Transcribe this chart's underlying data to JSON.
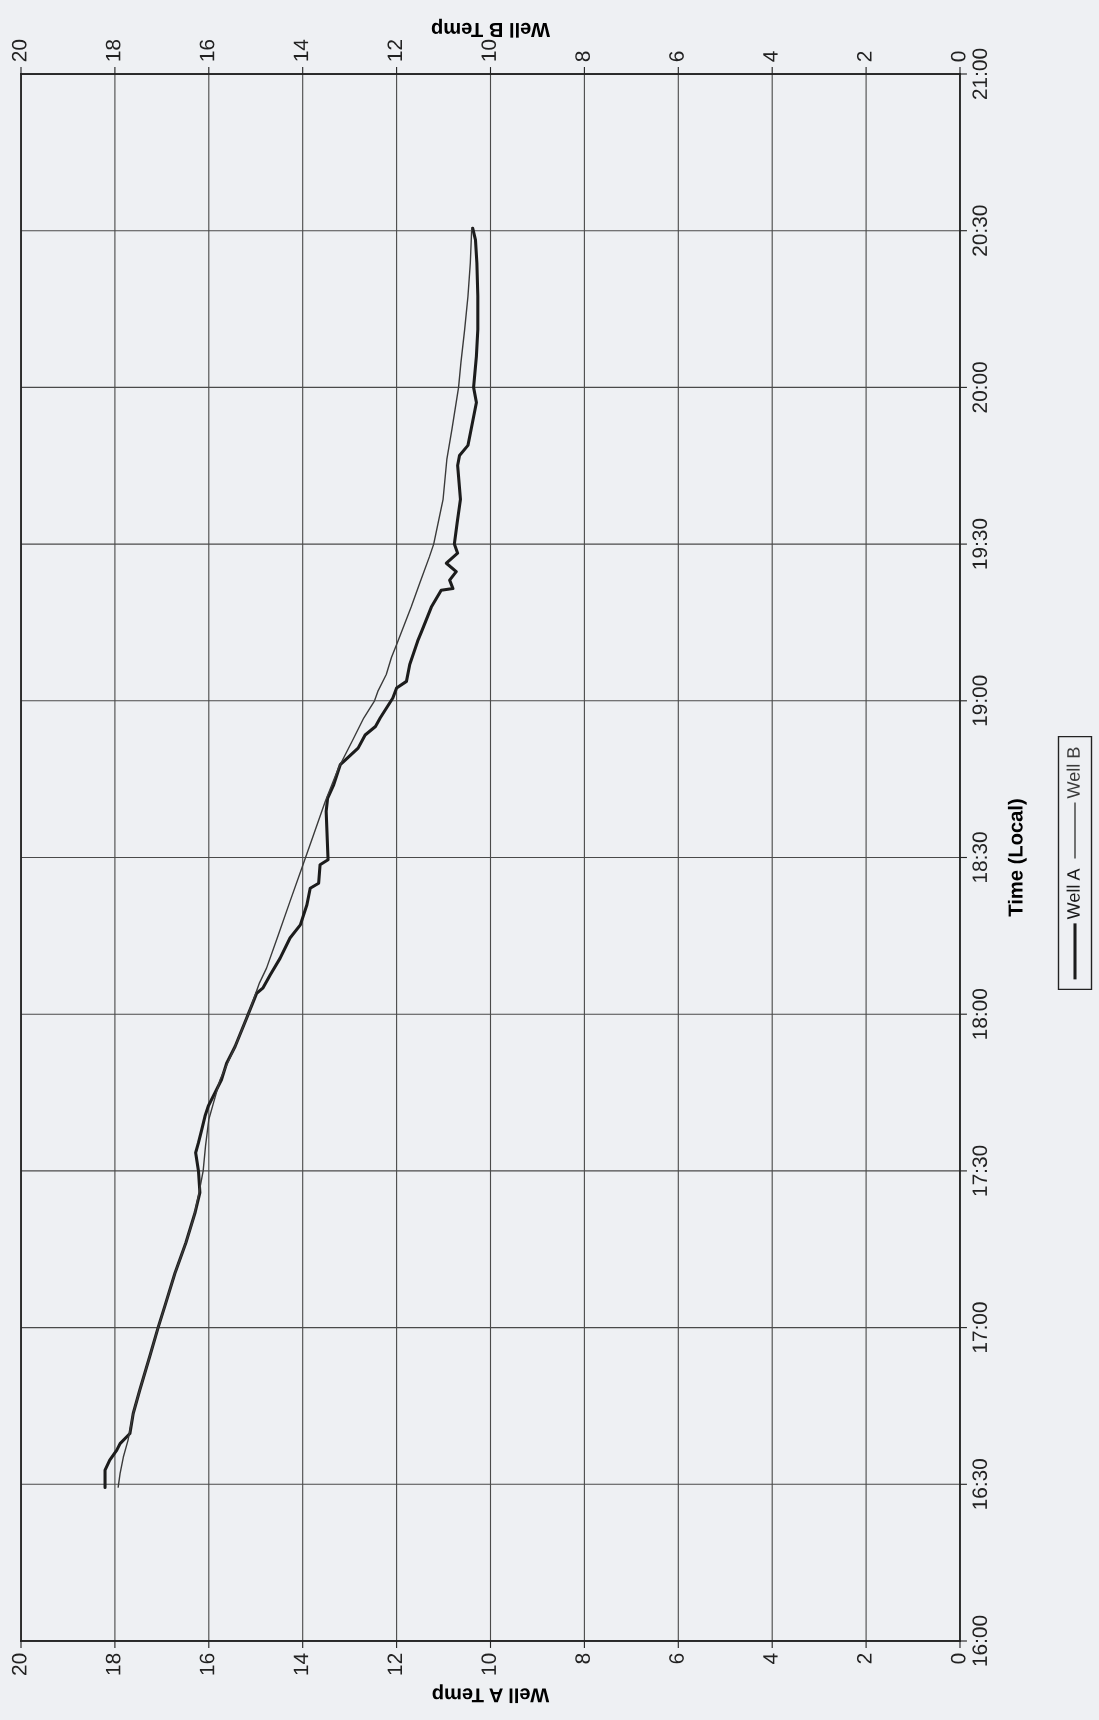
{
  "chart_data": {
    "type": "line",
    "xlabel": "Well A Temp",
    "x2label": "Well B Temp",
    "ylabel": "Time (Local)",
    "xlim": [
      20,
      0
    ],
    "xticks": [
      20,
      18,
      16,
      14,
      12,
      10,
      8,
      6,
      4,
      2,
      0
    ],
    "x2lim": [
      20,
      0
    ],
    "x2ticks": [
      20,
      18,
      16,
      14,
      12,
      10,
      8,
      6,
      4,
      2,
      0
    ],
    "ylim": [
      16,
      21
    ],
    "yticks": [
      {
        "value": 16,
        "label": "16:00"
      },
      {
        "value": 16.5,
        "label": "16:30"
      },
      {
        "value": 17,
        "label": "17:00"
      },
      {
        "value": 17.5,
        "label": "17:30"
      },
      {
        "value": 18,
        "label": "18:00"
      },
      {
        "value": 18.5,
        "label": "18:30"
      },
      {
        "value": 19,
        "label": "19:00"
      },
      {
        "value": 19.5,
        "label": "19:30"
      },
      {
        "value": 20,
        "label": "20:00"
      },
      {
        "value": 20.5,
        "label": "20:30"
      },
      {
        "value": 21,
        "label": "21:00"
      }
    ],
    "grid": true,
    "legend": "right",
    "series": [
      {
        "name": "Well A",
        "color": "#1c1c1c",
        "x": [
          18.21,
          18.21,
          18.11,
          17.96,
          17.89,
          17.68,
          17.61,
          17.47,
          17.26,
          17.08,
          16.94,
          16.72,
          16.49,
          16.29,
          16.19,
          16.22,
          16.28,
          16.22,
          16.15,
          16.08,
          16.01,
          15.87,
          15.73,
          15.62,
          15.44,
          15.16,
          14.98,
          14.85,
          14.69,
          14.48,
          14.27,
          14.05,
          13.91,
          13.84,
          13.66,
          13.63,
          13.46,
          13.5,
          13.47,
          13.34,
          13.2,
          12.82,
          12.67,
          12.45,
          12.35,
          12.08,
          12.0,
          11.79,
          11.72,
          11.55,
          11.46,
          11.26,
          11.05,
          10.8,
          10.87,
          10.73,
          10.94,
          10.7,
          10.77,
          10.71,
          10.64,
          10.7,
          10.66,
          10.48,
          10.41,
          10.3,
          10.36,
          10.3,
          10.27,
          10.27,
          10.29,
          10.32,
          10.38
        ],
        "values": [
          16.49,
          16.545,
          16.577,
          16.609,
          16.63,
          16.662,
          16.726,
          16.801,
          16.907,
          17.0,
          17.067,
          17.174,
          17.27,
          17.368,
          17.431,
          17.5,
          17.558,
          17.59,
          17.632,
          17.675,
          17.707,
          17.749,
          17.791,
          17.844,
          17.897,
          18.0,
          18.067,
          18.083,
          18.126,
          18.179,
          18.243,
          18.285,
          18.349,
          18.402,
          18.418,
          18.477,
          18.493,
          18.647,
          18.689,
          18.732,
          18.796,
          18.849,
          18.891,
          18.918,
          18.945,
          19.009,
          19.041,
          19.062,
          19.116,
          19.191,
          19.224,
          19.299,
          19.353,
          19.358,
          19.385,
          19.412,
          19.439,
          19.471,
          19.5,
          19.568,
          19.643,
          19.751,
          19.783,
          19.815,
          19.868,
          19.952,
          20.0,
          20.1,
          20.185,
          20.291,
          20.397,
          20.471,
          20.508
        ]
      },
      {
        "name": "Well B",
        "color": "#3a3a3a",
        "axis": "x2",
        "x": [
          17.93,
          17.89,
          17.82,
          17.72,
          17.61,
          17.47,
          17.26,
          17.08,
          16.94,
          16.72,
          16.49,
          16.33,
          16.22,
          16.12,
          16.07,
          16.0,
          15.9,
          15.76,
          15.44,
          15.16,
          14.92,
          14.77,
          14.52,
          14.27,
          14.02,
          13.77,
          13.52,
          13.24,
          12.95,
          12.7,
          12.47,
          12.4,
          12.22,
          12.11,
          11.97,
          11.83,
          11.69,
          11.51,
          11.3,
          11.21,
          11.01,
          10.93,
          10.82,
          10.68,
          10.63,
          10.55,
          10.48,
          10.43,
          10.4
        ],
        "values": [
          16.491,
          16.534,
          16.587,
          16.641,
          16.726,
          16.801,
          16.907,
          17.0,
          17.067,
          17.174,
          17.27,
          17.346,
          17.421,
          17.5,
          17.579,
          17.664,
          17.717,
          17.791,
          17.897,
          18.0,
          18.1,
          18.147,
          18.253,
          18.36,
          18.466,
          18.572,
          18.679,
          18.785,
          18.87,
          18.945,
          19.0,
          19.03,
          19.084,
          19.138,
          19.191,
          19.245,
          19.299,
          19.374,
          19.46,
          19.5,
          19.643,
          19.77,
          19.868,
          20.0,
          20.079,
          20.185,
          20.291,
          20.397,
          20.508
        ]
      }
    ]
  }
}
